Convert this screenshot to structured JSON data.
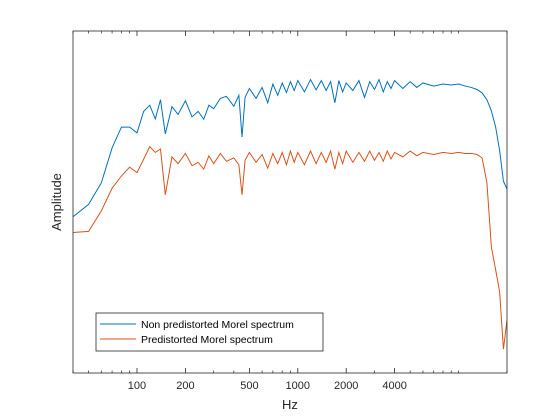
{
  "chart_data": {
    "type": "line",
    "title": "",
    "xlabel": "Hz",
    "ylabel": "Amplitude",
    "xscale": "log",
    "xlim": [
      40,
      20000
    ],
    "ylim": [
      0,
      1
    ],
    "xticks": [
      100,
      200,
      500,
      1000,
      2000,
      4000
    ],
    "xtick_labels": [
      "100",
      "200",
      "500",
      "1000",
      "2000",
      "4000"
    ],
    "yticks": [],
    "grid": false,
    "legend_location": "bottom-left",
    "series": [
      {
        "name": "Non predistorted Morel spectrum",
        "color": "#0072BD",
        "points": [
          [
            40,
            0.457
          ],
          [
            50,
            0.493
          ],
          [
            60,
            0.556
          ],
          [
            70,
            0.658
          ],
          [
            80,
            0.719
          ],
          [
            90,
            0.719
          ],
          [
            100,
            0.702
          ],
          [
            110,
            0.765
          ],
          [
            120,
            0.783
          ],
          [
            130,
            0.743
          ],
          [
            140,
            0.799
          ],
          [
            150,
            0.699
          ],
          [
            165,
            0.779
          ],
          [
            180,
            0.756
          ],
          [
            200,
            0.796
          ],
          [
            220,
            0.749
          ],
          [
            240,
            0.765
          ],
          [
            260,
            0.742
          ],
          [
            280,
            0.783
          ],
          [
            300,
            0.773
          ],
          [
            330,
            0.803
          ],
          [
            360,
            0.809
          ],
          [
            400,
            0.78
          ],
          [
            430,
            0.812
          ],
          [
            450,
            0.69
          ],
          [
            470,
            0.806
          ],
          [
            500,
            0.832
          ],
          [
            550,
            0.803
          ],
          [
            600,
            0.835
          ],
          [
            650,
            0.79
          ],
          [
            700,
            0.845
          ],
          [
            750,
            0.812
          ],
          [
            800,
            0.848
          ],
          [
            850,
            0.82
          ],
          [
            900,
            0.852
          ],
          [
            950,
            0.826
          ],
          [
            1000,
            0.855
          ],
          [
            1100,
            0.822
          ],
          [
            1200,
            0.858
          ],
          [
            1300,
            0.828
          ],
          [
            1400,
            0.855
          ],
          [
            1500,
            0.826
          ],
          [
            1600,
            0.852
          ],
          [
            1700,
            0.79
          ],
          [
            1800,
            0.855
          ],
          [
            1900,
            0.822
          ],
          [
            2000,
            0.848
          ],
          [
            2200,
            0.826
          ],
          [
            2400,
            0.855
          ],
          [
            2600,
            0.806
          ],
          [
            2800,
            0.852
          ],
          [
            3000,
            0.829
          ],
          [
            3200,
            0.858
          ],
          [
            3400,
            0.822
          ],
          [
            3600,
            0.852
          ],
          [
            3800,
            0.832
          ],
          [
            4000,
            0.855
          ],
          [
            4500,
            0.832
          ],
          [
            5000,
            0.852
          ],
          [
            5500,
            0.835
          ],
          [
            6000,
            0.848
          ],
          [
            7000,
            0.839
          ],
          [
            8000,
            0.845
          ],
          [
            9000,
            0.842
          ],
          [
            10000,
            0.845
          ],
          [
            11000,
            0.839
          ],
          [
            12000,
            0.835
          ],
          [
            13000,
            0.829
          ],
          [
            14000,
            0.819
          ],
          [
            15000,
            0.799
          ],
          [
            16000,
            0.766
          ],
          [
            17000,
            0.719
          ],
          [
            18000,
            0.65
          ],
          [
            19000,
            0.561
          ],
          [
            20000,
            0.538
          ]
        ]
      },
      {
        "name": "Predistorted Morel spectrum",
        "color": "#D95319",
        "points": [
          [
            40,
            0.411
          ],
          [
            50,
            0.414
          ],
          [
            60,
            0.474
          ],
          [
            70,
            0.54
          ],
          [
            80,
            0.576
          ],
          [
            90,
            0.602
          ],
          [
            100,
            0.586
          ],
          [
            110,
            0.625
          ],
          [
            120,
            0.662
          ],
          [
            130,
            0.645
          ],
          [
            140,
            0.655
          ],
          [
            150,
            0.521
          ],
          [
            165,
            0.632
          ],
          [
            180,
            0.612
          ],
          [
            200,
            0.642
          ],
          [
            220,
            0.606
          ],
          [
            240,
            0.616
          ],
          [
            260,
            0.596
          ],
          [
            280,
            0.635
          ],
          [
            300,
            0.612
          ],
          [
            330,
            0.642
          ],
          [
            360,
            0.619
          ],
          [
            400,
            0.629
          ],
          [
            430,
            0.609
          ],
          [
            450,
            0.521
          ],
          [
            470,
            0.622
          ],
          [
            500,
            0.645
          ],
          [
            550,
            0.616
          ],
          [
            600,
            0.639
          ],
          [
            650,
            0.599
          ],
          [
            700,
            0.642
          ],
          [
            750,
            0.612
          ],
          [
            800,
            0.645
          ],
          [
            850,
            0.609
          ],
          [
            900,
            0.649
          ],
          [
            950,
            0.616
          ],
          [
            1000,
            0.645
          ],
          [
            1100,
            0.609
          ],
          [
            1200,
            0.649
          ],
          [
            1300,
            0.612
          ],
          [
            1400,
            0.645
          ],
          [
            1500,
            0.616
          ],
          [
            1600,
            0.649
          ],
          [
            1700,
            0.596
          ],
          [
            1800,
            0.645
          ],
          [
            1900,
            0.612
          ],
          [
            2000,
            0.649
          ],
          [
            2200,
            0.616
          ],
          [
            2400,
            0.645
          ],
          [
            2600,
            0.619
          ],
          [
            2800,
            0.649
          ],
          [
            3000,
            0.622
          ],
          [
            3200,
            0.645
          ],
          [
            3400,
            0.619
          ],
          [
            3600,
            0.649
          ],
          [
            3800,
            0.626
          ],
          [
            4000,
            0.645
          ],
          [
            4500,
            0.632
          ],
          [
            5000,
            0.649
          ],
          [
            5500,
            0.635
          ],
          [
            6000,
            0.645
          ],
          [
            7000,
            0.639
          ],
          [
            8000,
            0.645
          ],
          [
            9000,
            0.642
          ],
          [
            10000,
            0.645
          ],
          [
            11000,
            0.642
          ],
          [
            12000,
            0.642
          ],
          [
            13000,
            0.639
          ],
          [
            14000,
            0.629
          ],
          [
            15000,
            0.556
          ],
          [
            16000,
            0.367
          ],
          [
            17000,
            0.302
          ],
          [
            18000,
            0.237
          ],
          [
            19000,
            0.07
          ],
          [
            20000,
            0.154
          ]
        ]
      }
    ]
  }
}
